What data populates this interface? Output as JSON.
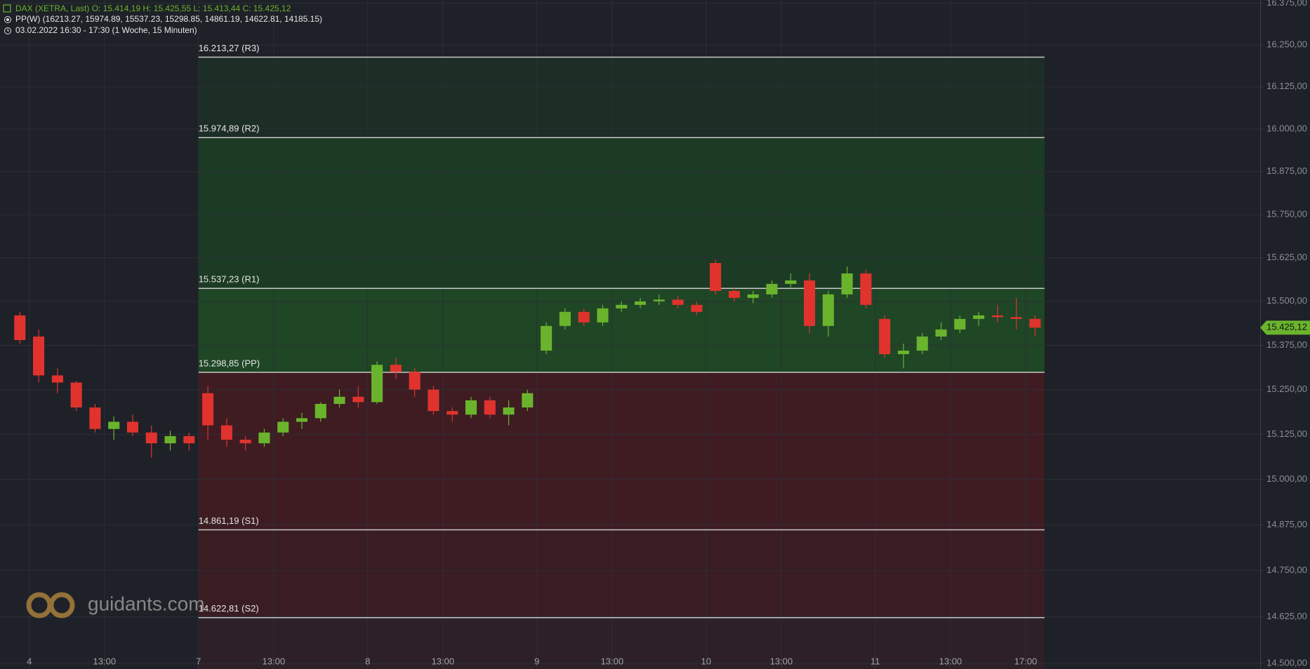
{
  "header": {
    "symbol_line": "DAX (XETRA, Last)   O: 15.414,19   H: 15.425,55   L: 15.413,44   C: 15.425,12",
    "indicator_line": "PP(W)   (16213.27, 15974.89, 15537.23, 15298.85, 14861.19, 14622.81, 14185.15)",
    "time_line": "03.02.2022 16:30 - 17:30   (1 Woche, 15 Minuten)"
  },
  "watermark": "guidants.com",
  "chart_data": {
    "type": "candlestick",
    "categories": [
      null,
      "4",
      null,
      null,
      null,
      "13:00",
      null,
      null,
      null,
      null,
      "7",
      null,
      null,
      null,
      "13:00",
      null,
      null,
      null,
      null,
      "8",
      null,
      null,
      null,
      "13:00",
      null,
      null,
      null,
      null,
      "9",
      null,
      null,
      null,
      "13:00",
      null,
      null,
      null,
      null,
      "10",
      null,
      null,
      null,
      "13:00",
      null,
      null,
      null,
      null,
      "11",
      null,
      null,
      null,
      "13:00",
      null,
      null,
      null,
      "17:00"
    ],
    "open": [
      15460,
      15400,
      15290,
      15270,
      15200,
      15140,
      15160,
      15130,
      15100,
      15120,
      15240,
      15150,
      15110,
      15100,
      15130,
      15160,
      15170,
      15210,
      15230,
      15215,
      15320,
      15300,
      15250,
      15190,
      15180,
      15220,
      15180,
      15200,
      15360,
      15430,
      15470,
      15440,
      15480,
      15490,
      15500,
      15505,
      15490,
      15610,
      15530,
      15510,
      15520,
      15550,
      15560,
      15430,
      15520,
      15580,
      15450,
      15350,
      15360,
      15400,
      15420,
      15450,
      15460,
      15455,
      15450
    ],
    "high": [
      15470,
      15420,
      15310,
      15275,
      15210,
      15175,
      15180,
      15150,
      15135,
      15130,
      15260,
      15170,
      15120,
      15140,
      15170,
      15185,
      15215,
      15250,
      15260,
      15330,
      15340,
      15310,
      15260,
      15200,
      15230,
      15230,
      15220,
      15250,
      15440,
      15480,
      15480,
      15490,
      15500,
      15510,
      15520,
      15515,
      15500,
      15620,
      15540,
      15530,
      15560,
      15580,
      15580,
      15530,
      15600,
      15590,
      15460,
      15380,
      15410,
      15440,
      15460,
      15470,
      15490,
      15510,
      15460
    ],
    "low": [
      15380,
      15270,
      15240,
      15190,
      15130,
      15110,
      15120,
      15060,
      15080,
      15080,
      15110,
      15090,
      15080,
      15090,
      15120,
      15140,
      15160,
      15200,
      15200,
      15210,
      15280,
      15230,
      15180,
      15160,
      15170,
      15170,
      15150,
      15190,
      15350,
      15420,
      15430,
      15430,
      15470,
      15480,
      15490,
      15480,
      15460,
      15520,
      15500,
      15495,
      15510,
      15540,
      15410,
      15400,
      15510,
      15480,
      15340,
      15310,
      15350,
      15390,
      15410,
      15430,
      15440,
      15420,
      15400
    ],
    "close": [
      15390,
      15290,
      15270,
      15200,
      15140,
      15160,
      15130,
      15100,
      15120,
      15100,
      15150,
      15110,
      15100,
      15130,
      15160,
      15170,
      15210,
      15230,
      15215,
      15320,
      15300,
      15250,
      15190,
      15180,
      15220,
      15180,
      15200,
      15240,
      15430,
      15470,
      15440,
      15480,
      15490,
      15500,
      15505,
      15490,
      15470,
      15530,
      15510,
      15520,
      15550,
      15560,
      15430,
      15520,
      15580,
      15490,
      15350,
      15360,
      15400,
      15420,
      15450,
      15460,
      15455,
      15450,
      15425.12
    ],
    "up_color": "#6ab42d",
    "down_color": "#e0332e",
    "log_scale": true,
    "grid": true,
    "ylim": [
      14485,
      16385
    ],
    "yticks": [
      {
        "value": 16375,
        "label": "16.375,00"
      },
      {
        "value": 16250,
        "label": "16.250,00"
      },
      {
        "value": 16125,
        "label": "16.125,00"
      },
      {
        "value": 16000,
        "label": "16.000,00"
      },
      {
        "value": 15875,
        "label": "15.875,00"
      },
      {
        "value": 15750,
        "label": "15.750,00"
      },
      {
        "value": 15625,
        "label": "15.625,00"
      },
      {
        "value": 15500,
        "label": "15.500,00"
      },
      {
        "value": 15375,
        "label": "15.375,00"
      },
      {
        "value": 15250,
        "label": "15.250,00"
      },
      {
        "value": 15125,
        "label": "15.125,00"
      },
      {
        "value": 15000,
        "label": "15.000,00"
      },
      {
        "value": 14875,
        "label": "14.875,00"
      },
      {
        "value": 14750,
        "label": "14.750,00"
      },
      {
        "value": 14625,
        "label": "14.625,00"
      },
      {
        "value": 14500,
        "label": "14.500,00"
      }
    ],
    "last_price": {
      "value": 15425.12,
      "label": "15.425,12"
    },
    "pivots": [
      {
        "value": 16213.27,
        "label": "16.213,27 (R3)",
        "color": "#1c2e25"
      },
      {
        "value": 15974.89,
        "label": "15.974,89 (R2)",
        "color": "#1c3b24"
      },
      {
        "value": 15537.23,
        "label": "15.537,23 (R1)",
        "color": "#1f4625"
      },
      {
        "value": 15298.85,
        "label": "15.298,85 (PP)",
        "color": "#3e1c22"
      },
      {
        "value": 14861.19,
        "label": "14.861,19 (S1)",
        "color": "#3a1d23"
      },
      {
        "value": 14622.81,
        "label": "14.622,81 (S2)",
        "color": "#2e2027"
      }
    ]
  }
}
